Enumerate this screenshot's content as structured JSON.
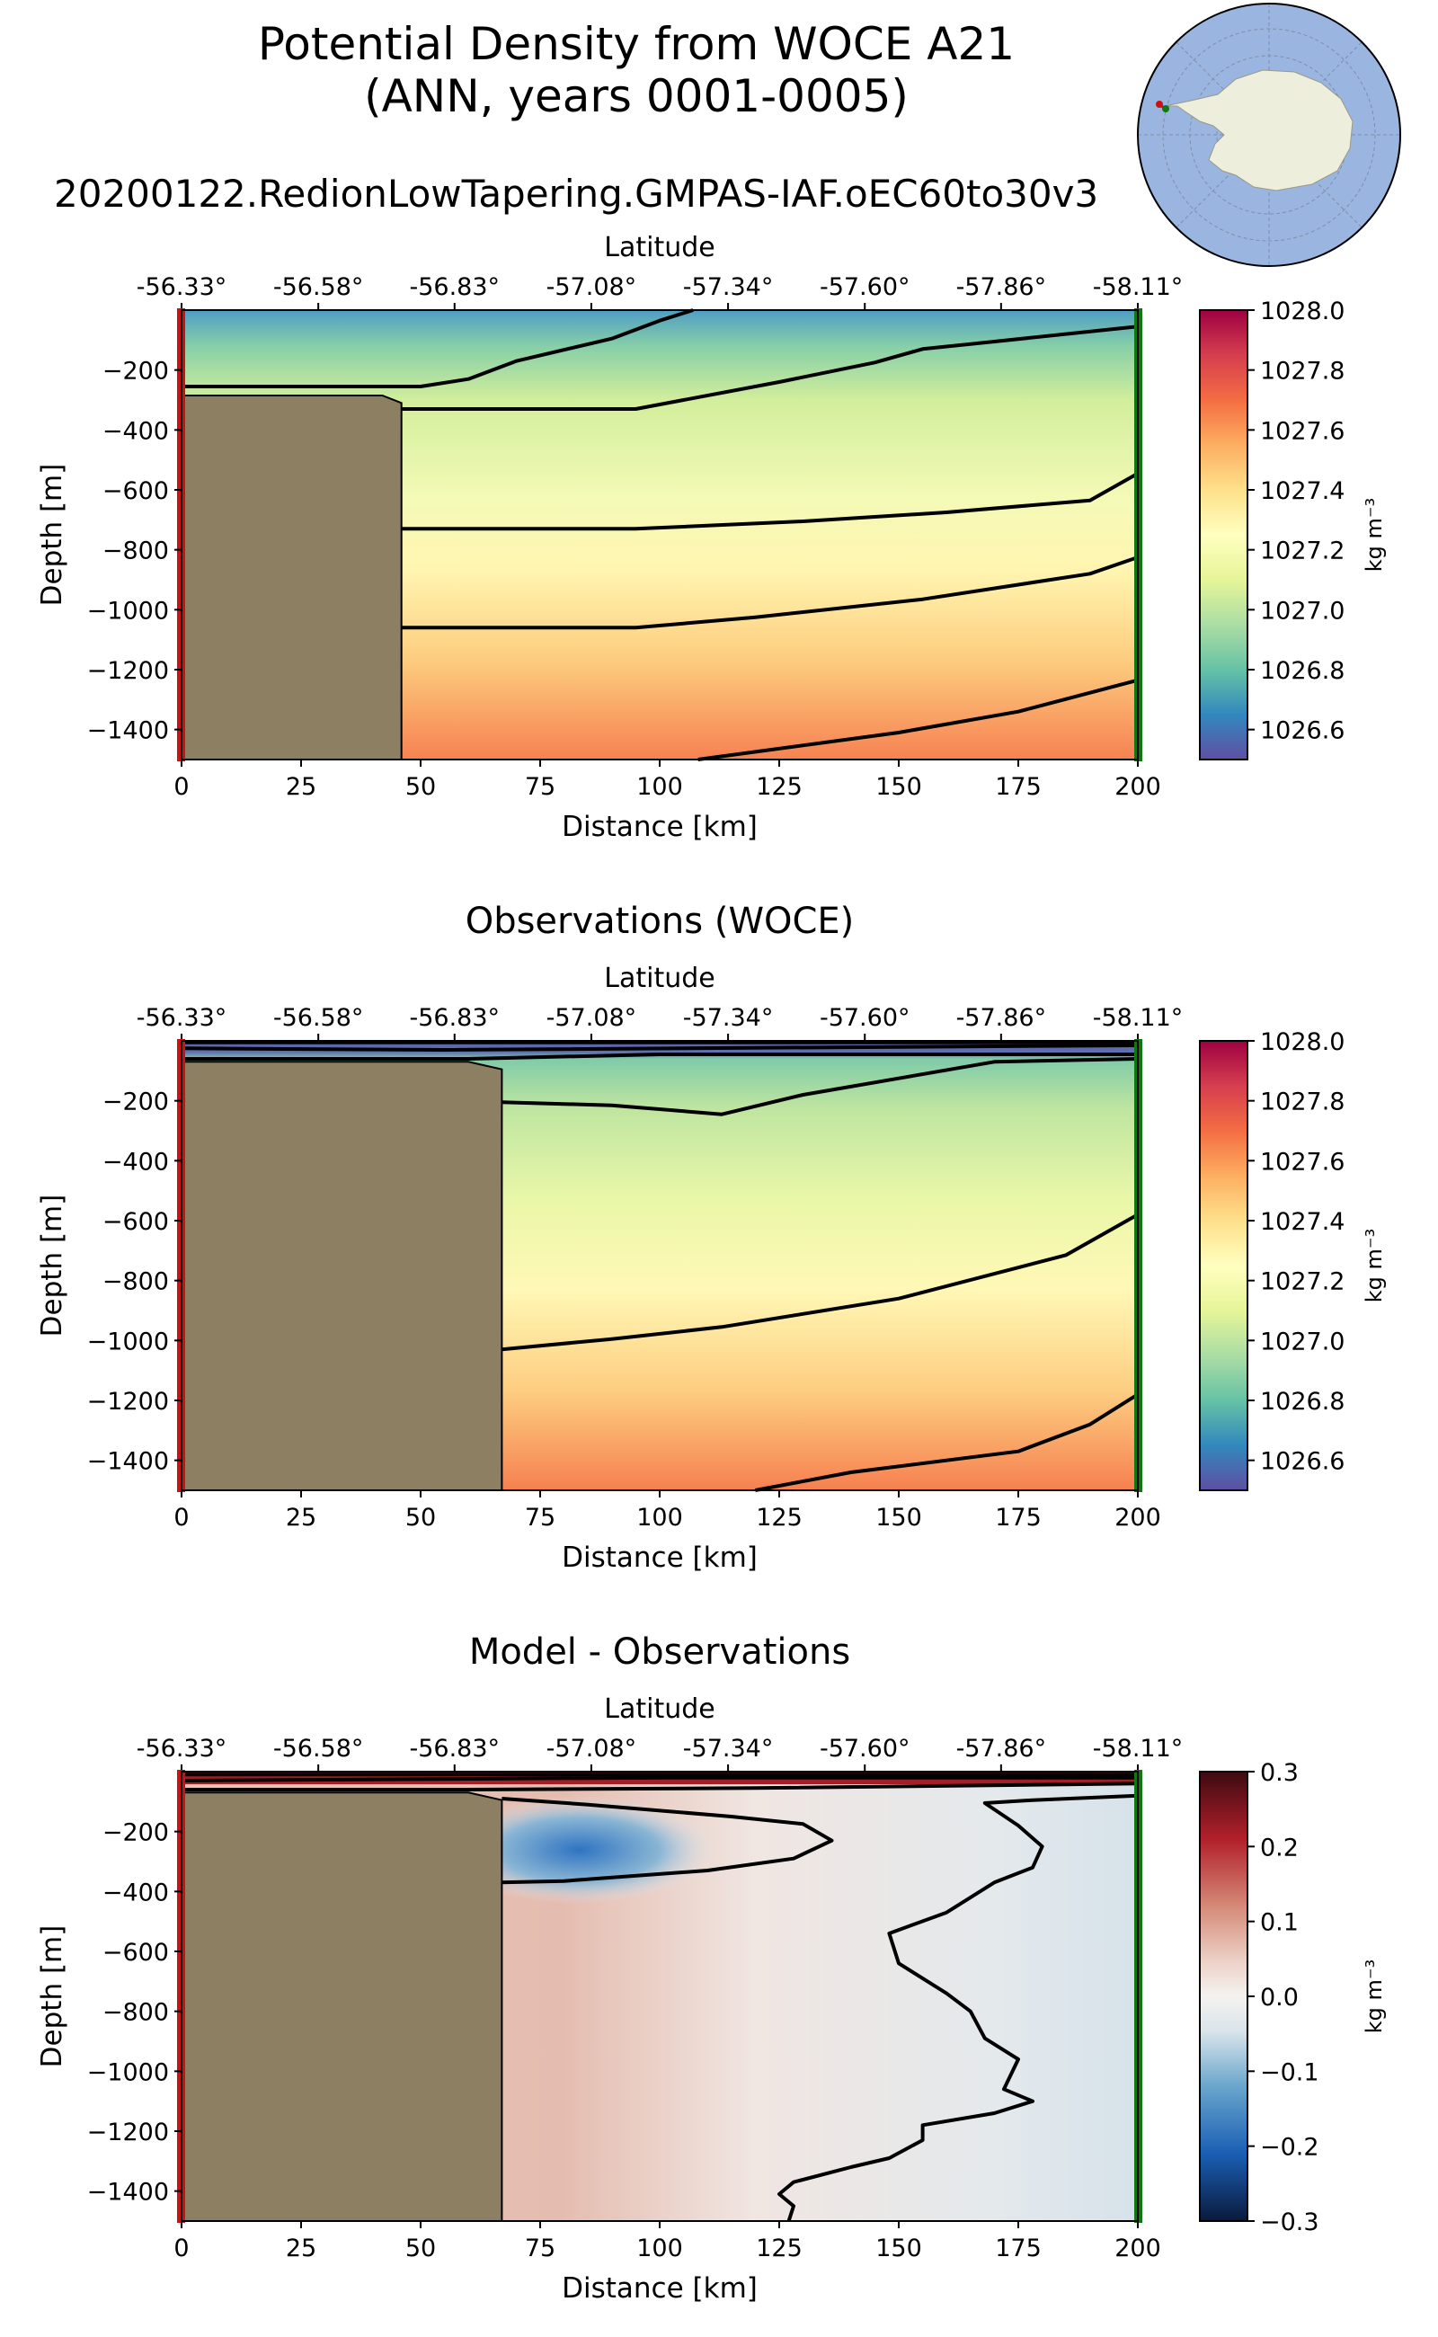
{
  "figure": {
    "title_line1": "Potential Density from WOCE A21",
    "title_line2": "(ANN, years 0001-0005)",
    "subtitle": "20200122.RedionLowTapering.GMPAS-IAF.oEC60to30v3"
  },
  "colors": {
    "land": "#8d7f62",
    "start_marker": "#cc1111",
    "end_marker": "#117711",
    "ocean": "#9ab5e0",
    "antarctica": "#eeeedd",
    "contour": "#000000"
  },
  "chart_data": [
    {
      "id": "model",
      "type": "heatmap",
      "title": "",
      "xlabel": "Distance [km]",
      "ylabel": "Depth [m]",
      "top_axis_label": "Latitude",
      "xlim": [
        0,
        200
      ],
      "ylim": [
        -1500,
        0
      ],
      "x_ticks": [
        0,
        25,
        50,
        75,
        100,
        125,
        150,
        175,
        200
      ],
      "y_ticks": [
        -200,
        -400,
        -600,
        -800,
        -1000,
        -1200,
        -1400
      ],
      "y_tick_labels": [
        "−200",
        "−400",
        "−600",
        "−800",
        "−1000",
        "−1200",
        "−1400"
      ],
      "lat_ticks": [
        "-56.33°",
        "-56.58°",
        "-56.83°",
        "-57.08°",
        "-57.34°",
        "-57.60°",
        "-57.86°",
        "-58.11°"
      ],
      "lat_positions_km": [
        0,
        28.6,
        57.1,
        85.7,
        114.3,
        142.9,
        171.4,
        200
      ],
      "colorbar": {
        "min": 1026.5,
        "max": 1028.0,
        "ticks": [
          1028.0,
          1027.8,
          1027.6,
          1027.4,
          1027.2,
          1027.0,
          1026.8,
          1026.6
        ],
        "tick_labels": [
          "1028.0",
          "1027.8",
          "1027.6",
          "1027.4",
          "1027.2",
          "1027.0",
          "1026.8",
          "1026.6"
        ],
        "label": "kg m⁻³",
        "cmap": "spectral"
      },
      "bathymetry": [
        [
          0,
          -285
        ],
        [
          42,
          -285
        ],
        [
          46,
          -310
        ],
        [
          46,
          -1500
        ],
        [
          0,
          -1500
        ]
      ],
      "contours": [
        [
          [
            0,
            -255
          ],
          [
            50,
            -255
          ],
          [
            60,
            -230
          ],
          [
            70,
            -170
          ],
          [
            90,
            -95
          ],
          [
            100,
            -35
          ],
          [
            107,
            0
          ]
        ],
        [
          [
            46,
            -330
          ],
          [
            95,
            -330
          ],
          [
            105,
            -300
          ],
          [
            125,
            -240
          ],
          [
            145,
            -175
          ],
          [
            155,
            -130
          ],
          [
            170,
            -105
          ],
          [
            200,
            -55
          ]
        ],
        [
          [
            46,
            -730
          ],
          [
            95,
            -730
          ],
          [
            130,
            -705
          ],
          [
            160,
            -675
          ],
          [
            190,
            -635
          ],
          [
            200,
            -545
          ]
        ],
        [
          [
            46,
            -1060
          ],
          [
            95,
            -1060
          ],
          [
            120,
            -1025
          ],
          [
            155,
            -965
          ],
          [
            190,
            -880
          ],
          [
            200,
            -825
          ]
        ],
        [
          [
            108,
            -1500
          ],
          [
            150,
            -1410
          ],
          [
            175,
            -1340
          ],
          [
            200,
            -1235
          ]
        ]
      ]
    },
    {
      "id": "obs",
      "type": "heatmap",
      "title": "Observations (WOCE)",
      "xlabel": "Distance [km]",
      "ylabel": "Depth [m]",
      "top_axis_label": "Latitude",
      "xlim": [
        0,
        200
      ],
      "ylim": [
        -1500,
        0
      ],
      "x_ticks": [
        0,
        25,
        50,
        75,
        100,
        125,
        150,
        175,
        200
      ],
      "y_ticks": [
        -200,
        -400,
        -600,
        -800,
        -1000,
        -1200,
        -1400
      ],
      "y_tick_labels": [
        "−200",
        "−400",
        "−600",
        "−800",
        "−1000",
        "−1200",
        "−1400"
      ],
      "lat_ticks": [
        "-56.33°",
        "-56.58°",
        "-56.83°",
        "-57.08°",
        "-57.34°",
        "-57.60°",
        "-57.86°",
        "-58.11°"
      ],
      "lat_positions_km": [
        0,
        28.6,
        57.1,
        85.7,
        114.3,
        142.9,
        171.4,
        200
      ],
      "colorbar": {
        "min": 1026.5,
        "max": 1028.0,
        "ticks": [
          1028.0,
          1027.8,
          1027.6,
          1027.4,
          1027.2,
          1027.0,
          1026.8,
          1026.6
        ],
        "tick_labels": [
          "1028.0",
          "1027.8",
          "1027.6",
          "1027.4",
          "1027.2",
          "1027.0",
          "1026.8",
          "1026.6"
        ],
        "label": "kg m⁻³",
        "cmap": "spectral"
      },
      "bathymetry": [
        [
          0,
          -70
        ],
        [
          60,
          -70
        ],
        [
          67,
          -95
        ],
        [
          67,
          -1500
        ],
        [
          0,
          -1500
        ]
      ],
      "contours": [
        [
          [
            0,
            -5
          ],
          [
            200,
            -5
          ]
        ],
        [
          [
            0,
            -25
          ],
          [
            55,
            -30
          ],
          [
            200,
            -15
          ]
        ],
        [
          [
            0,
            -60
          ],
          [
            60,
            -60
          ],
          [
            100,
            -45
          ],
          [
            200,
            -45
          ]
        ],
        [
          [
            67,
            -205
          ],
          [
            90,
            -215
          ],
          [
            113,
            -245
          ],
          [
            130,
            -180
          ],
          [
            170,
            -70
          ],
          [
            200,
            -60
          ]
        ],
        [
          [
            67,
            -1030
          ],
          [
            90,
            -995
          ],
          [
            113,
            -955
          ],
          [
            150,
            -860
          ],
          [
            185,
            -715
          ],
          [
            200,
            -580
          ]
        ],
        [
          [
            120,
            -1500
          ],
          [
            140,
            -1440
          ],
          [
            175,
            -1370
          ],
          [
            190,
            -1280
          ],
          [
            200,
            -1180
          ]
        ]
      ]
    },
    {
      "id": "diff",
      "type": "heatmap",
      "title": "Model - Observations",
      "xlabel": "Distance [km]",
      "ylabel": "Depth [m]",
      "top_axis_label": "Latitude",
      "xlim": [
        0,
        200
      ],
      "ylim": [
        -1500,
        0
      ],
      "x_ticks": [
        0,
        25,
        50,
        75,
        100,
        125,
        150,
        175,
        200
      ],
      "y_ticks": [
        -200,
        -400,
        -600,
        -800,
        -1000,
        -1200,
        -1400
      ],
      "y_tick_labels": [
        "−200",
        "−400",
        "−600",
        "−800",
        "−1000",
        "−1200",
        "−1400"
      ],
      "lat_ticks": [
        "-56.33°",
        "-56.58°",
        "-56.83°",
        "-57.08°",
        "-57.34°",
        "-57.60°",
        "-57.86°",
        "-58.11°"
      ],
      "lat_positions_km": [
        0,
        28.6,
        57.1,
        85.7,
        114.3,
        142.9,
        171.4,
        200
      ],
      "colorbar": {
        "min": -0.3,
        "max": 0.3,
        "ticks": [
          0.3,
          0.2,
          0.1,
          0.0,
          -0.1,
          -0.2,
          -0.3
        ],
        "tick_labels": [
          "0.3",
          "0.2",
          "0.1",
          "0.0",
          "−0.1",
          "−0.2",
          "−0.3"
        ],
        "label": "kg m⁻³",
        "cmap": "redblue"
      },
      "bathymetry": [
        [
          0,
          -70
        ],
        [
          60,
          -70
        ],
        [
          67,
          -95
        ],
        [
          67,
          -1500
        ],
        [
          0,
          -1500
        ]
      ],
      "contours": [
        [
          [
            0,
            -10
          ],
          [
            200,
            -10
          ]
        ],
        [
          [
            0,
            -30
          ],
          [
            100,
            -20
          ],
          [
            200,
            -20
          ]
        ],
        [
          [
            0,
            -60
          ],
          [
            60,
            -60
          ],
          [
            120,
            -55
          ],
          [
            200,
            -40
          ]
        ],
        [
          [
            67,
            -90
          ],
          [
            85,
            -110
          ],
          [
            115,
            -150
          ],
          [
            130,
            -175
          ],
          [
            136,
            -230
          ],
          [
            128,
            -290
          ],
          [
            110,
            -330
          ],
          [
            80,
            -365
          ],
          [
            67,
            -370
          ]
        ],
        [
          [
            200,
            -80
          ],
          [
            178,
            -95
          ],
          [
            168,
            -105
          ],
          [
            175,
            -180
          ],
          [
            180,
            -250
          ],
          [
            178,
            -320
          ],
          [
            170,
            -370
          ],
          [
            160,
            -470
          ],
          [
            148,
            -540
          ],
          [
            150,
            -640
          ],
          [
            160,
            -740
          ],
          [
            165,
            -800
          ],
          [
            168,
            -890
          ],
          [
            175,
            -960
          ],
          [
            172,
            -1060
          ],
          [
            178,
            -1100
          ],
          [
            170,
            -1140
          ],
          [
            155,
            -1180
          ],
          [
            155,
            -1230
          ],
          [
            148,
            -1290
          ],
          [
            140,
            -1320
          ],
          [
            128,
            -1370
          ],
          [
            125,
            -1410
          ],
          [
            128,
            -1450
          ],
          [
            127,
            -1500
          ]
        ]
      ]
    }
  ]
}
